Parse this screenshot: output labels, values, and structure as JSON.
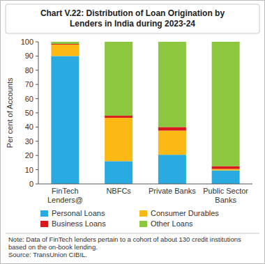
{
  "chart_data": {
    "type": "bar",
    "stacked": true,
    "title": "Chart V.22: Distribution of Loan Origination by Lenders in India during 2023-24",
    "y_label": "Per cent of Accounts",
    "categories": [
      "FinTech Lenders@",
      "NBFCs",
      "Private Banks",
      "Public Sector Banks"
    ],
    "series": [
      {
        "name": "Personal Loans",
        "color": "#29abe2",
        "values": [
          90,
          16,
          20.5,
          9.5
        ]
      },
      {
        "name": "Consumer Durables",
        "color": "#fdb913",
        "values": [
          8,
          30.5,
          17,
          1
        ]
      },
      {
        "name": "Business Loans",
        "color": "#d7191c",
        "values": [
          0.5,
          1.5,
          2.5,
          2
        ]
      },
      {
        "name": "Other Loans",
        "color": "#8dc63f",
        "values": [
          1.5,
          52,
          60,
          87.5
        ]
      }
    ],
    "ylim": [
      0,
      100
    ],
    "yticks": [
      0,
      10,
      20,
      30,
      40,
      50,
      60,
      70,
      80,
      90,
      100
    ],
    "grid": false,
    "legend": "bottom",
    "note": "Note: Data of FinTech lenders pertain to a cohort of about 130 credit institutions based on the on-book lending.",
    "source": "Source: TransUnion CIBIL."
  }
}
